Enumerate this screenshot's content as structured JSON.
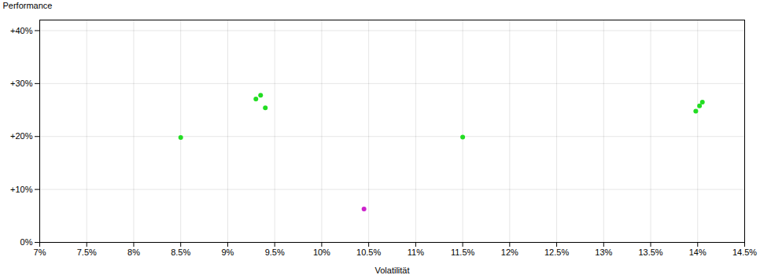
{
  "chart_data": {
    "type": "scatter",
    "xlabel": "Volatilität",
    "ylabel": "Performance",
    "xlim": [
      0.07,
      0.145
    ],
    "ylim": [
      0.0,
      0.42
    ],
    "xticks": [
      {
        "value": 0.07,
        "label": "7%"
      },
      {
        "value": 0.075,
        "label": "7.5%"
      },
      {
        "value": 0.08,
        "label": "8%"
      },
      {
        "value": 0.085,
        "label": "8.5%"
      },
      {
        "value": 0.09,
        "label": "9%"
      },
      {
        "value": 0.095,
        "label": "9.5%"
      },
      {
        "value": 0.1,
        "label": "10%"
      },
      {
        "value": 0.105,
        "label": "10.5%"
      },
      {
        "value": 0.11,
        "label": "11%"
      },
      {
        "value": 0.115,
        "label": "11.5%"
      },
      {
        "value": 0.12,
        "label": "12%"
      },
      {
        "value": 0.125,
        "label": "12.5%"
      },
      {
        "value": 0.13,
        "label": "13%"
      },
      {
        "value": 0.135,
        "label": "13.5%"
      },
      {
        "value": 0.14,
        "label": "14%"
      },
      {
        "value": 0.145,
        "label": "14.5%"
      }
    ],
    "yticks": [
      {
        "value": 0.0,
        "label": "0%"
      },
      {
        "value": 0.1,
        "label": "+10%"
      },
      {
        "value": 0.2,
        "label": "+20%"
      },
      {
        "value": 0.3,
        "label": "+30%"
      },
      {
        "value": 0.4,
        "label": "+40%"
      }
    ],
    "grid": true,
    "series": [
      {
        "color": "#22dd22",
        "x": [
          0.085,
          0.093,
          0.0935,
          0.094,
          0.115,
          0.1398,
          0.1402,
          0.1405
        ],
        "values": [
          0.198,
          0.271,
          0.278,
          0.254,
          0.199,
          0.248,
          0.258,
          0.265
        ]
      },
      {
        "color": "#cc22cc",
        "x": [
          0.1045
        ],
        "values": [
          0.063
        ]
      }
    ]
  }
}
